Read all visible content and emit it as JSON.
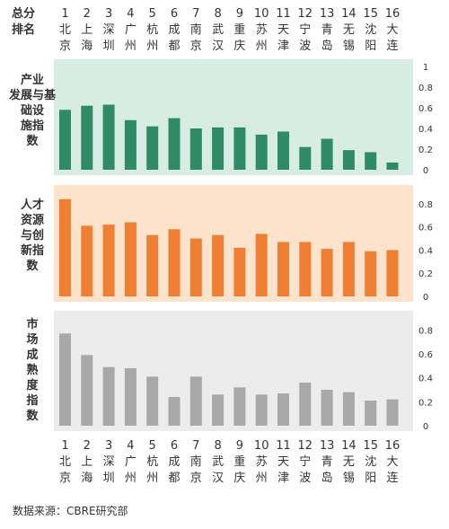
{
  "chart_data": {
    "type": "bar",
    "rank_header": [
      "总分",
      "排名"
    ],
    "ranks": [
      "1",
      "2",
      "3",
      "4",
      "5",
      "6",
      "7",
      "8",
      "9",
      "10",
      "11",
      "12",
      "13",
      "14",
      "15",
      "16"
    ],
    "categories": [
      "北京",
      "上海",
      "深圳",
      "广州",
      "杭州",
      "成都",
      "南京",
      "武汉",
      "重庆",
      "苏州",
      "天津",
      "宁波",
      "青岛",
      "无锡",
      "沈阳",
      "大连"
    ],
    "city_chars": [
      [
        "北",
        "京"
      ],
      [
        "上",
        "海"
      ],
      [
        "深",
        "圳"
      ],
      [
        "广",
        "州"
      ],
      [
        "杭",
        "州"
      ],
      [
        "成",
        "都"
      ],
      [
        "南",
        "京"
      ],
      [
        "武",
        "汉"
      ],
      [
        "重",
        "庆"
      ],
      [
        "苏",
        "州"
      ],
      [
        "天",
        "津"
      ],
      [
        "宁",
        "波"
      ],
      [
        "青",
        "岛"
      ],
      [
        "无",
        "锡"
      ],
      [
        "沈",
        "阳"
      ],
      [
        "大",
        "连"
      ]
    ],
    "series": [
      {
        "name": "产业发展与基础设施指数",
        "label_lines": [
          "产业",
          "发展与基",
          "础设",
          "施指",
          "数"
        ],
        "color": "#2e8b66",
        "band_color": "#d7ece3",
        "ylim": [
          0,
          1.0
        ],
        "ticks": [
          "0",
          "0.2",
          "0.4",
          "0.6",
          "0.8",
          "1"
        ],
        "values": [
          0.58,
          0.62,
          0.63,
          0.48,
          0.42,
          0.5,
          0.4,
          0.41,
          0.41,
          0.34,
          0.37,
          0.22,
          0.3,
          0.19,
          0.17,
          0.07
        ]
      },
      {
        "name": "人才资源与创新指数",
        "label_lines": [
          "人才",
          "资源",
          "与创",
          "新指",
          "数"
        ],
        "color": "#ef7f32",
        "band_color": "#fde3cc",
        "ylim": [
          0,
          0.9
        ],
        "ticks": [
          "0",
          "0.2",
          "0.4",
          "0.6",
          "0.8"
        ],
        "values": [
          0.84,
          0.61,
          0.62,
          0.64,
          0.53,
          0.58,
          0.5,
          0.53,
          0.42,
          0.54,
          0.47,
          0.47,
          0.41,
          0.47,
          0.39,
          0.4
        ]
      },
      {
        "name": "市场成熟度指数",
        "label_lines": [
          "市",
          "场",
          "成",
          "熟",
          "度",
          "指",
          "数"
        ],
        "color": "#a8a8a8",
        "band_color": "#ececec",
        "ylim": [
          0,
          0.9
        ],
        "ticks": [
          "0",
          "0.2",
          "0.4",
          "0.6",
          "0.8"
        ],
        "values": [
          0.77,
          0.59,
          0.49,
          0.48,
          0.41,
          0.24,
          0.41,
          0.26,
          0.32,
          0.26,
          0.27,
          0.36,
          0.3,
          0.28,
          0.21,
          0.22
        ]
      }
    ]
  },
  "source_text": "数据来源：CBRE研究部"
}
